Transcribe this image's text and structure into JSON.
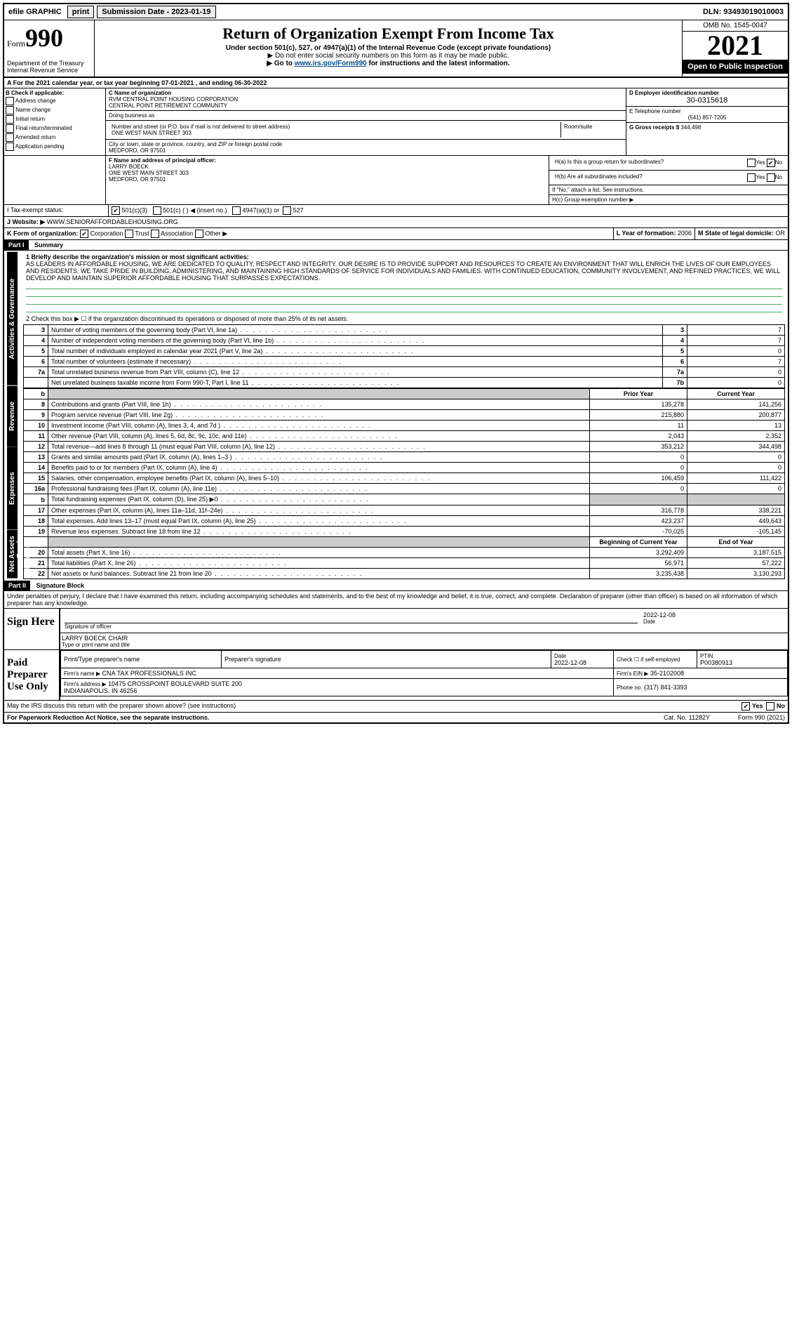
{
  "topbar": {
    "efile": "efile GRAPHIC",
    "print": "print",
    "subdate_label": "Submission Date - 2023-01-19",
    "dln": "DLN: 93493019010003"
  },
  "header": {
    "form_word": "Form",
    "form_num": "990",
    "dept": "Department of the Treasury\nInternal Revenue Service",
    "title": "Return of Organization Exempt From Income Tax",
    "sub": "Under section 501(c), 527, or 4947(a)(1) of the Internal Revenue Code (except private foundations)",
    "sub2": "▶ Do not enter social security numbers on this form as it may be made public.",
    "sub3_pre": "▶ Go to ",
    "sub3_link": "www.irs.gov/Form990",
    "sub3_post": " for instructions and the latest information.",
    "omb": "OMB No. 1545-0047",
    "year": "2021",
    "open": "Open to Public Inspection"
  },
  "period": "A For the 2021 calendar year, or tax year beginning 07-01-2021 , and ending 06-30-2022",
  "B": {
    "label": "B Check if applicable:",
    "items": [
      "Address change",
      "Name change",
      "Initial return",
      "Final return/terminated",
      "Amended return",
      "Application pending"
    ]
  },
  "C": {
    "label": "C Name of organization",
    "name1": "RVM CENTRAL POINT HOUSING CORPORATION",
    "name2": "CENTRAL POINT RETIREMENT COMMUNITY",
    "dba": "Doing business as",
    "street_label": "Number and street (or P.O. box if mail is not delivered to street address)",
    "street": "ONE WEST MAIN STREET 303",
    "room_label": "Room/suite",
    "city_label": "City or town, state or province, country, and ZIP or foreign postal code",
    "city": "MEDFORD, OR  97501"
  },
  "D": {
    "label": "D Employer identification number",
    "value": "30-0315618"
  },
  "E": {
    "label": "E Telephone number",
    "value": "(541) 857-7205"
  },
  "G": {
    "label": "G Gross receipts $",
    "value": "344,498"
  },
  "F": {
    "label": "F  Name and address of principal officer:",
    "name": "LARRY BOECK",
    "addr1": "ONE WEST MAIN STREET 303",
    "addr2": "MEDFORD, OR  97501"
  },
  "H": {
    "a": "H(a)  Is this a group return for subordinates?",
    "b": "H(b)  Are all subordinates included?",
    "b_note": "If \"No,\" attach a list. See instructions.",
    "c": "H(c)  Group exemption number ▶",
    "yes": "Yes",
    "no": "No"
  },
  "I": {
    "label": "I   Tax-exempt status:",
    "o1": "501(c)(3)",
    "o2": "501(c) (   ) ◀ (insert no.)",
    "o3": "4947(a)(1) or",
    "o4": "527"
  },
  "J": {
    "label": "J   Website: ▶",
    "value": "WWW.SENIORAFFORDABLEHOUSING.ORG"
  },
  "K": {
    "label": "K Form of organization:",
    "o1": "Corporation",
    "o2": "Trust",
    "o3": "Association",
    "o4": "Other ▶"
  },
  "L": {
    "label": "L Year of formation:",
    "value": "2006"
  },
  "M": {
    "label": "M State of legal domicile:",
    "value": "OR"
  },
  "partI": {
    "hdr": "Part I",
    "title": "Summary",
    "line1_label": "1   Briefly describe the organization's mission or most significant activities:",
    "mission": "AS LEADERS IN AFFORDABLE HOUSING, WE ARE DEDICATED TO QUALITY, RESPECT AND INTEGRITY. OUR DESIRE IS TO PROVIDE SUPPORT AND RESOURCES TO CREATE AN ENVIRONMENT THAT WILL ENRICH THE LIVES OF OUR EMPLOYEES AND RESIDENTS. WE TAKE PRIDE IN BUILDING, ADMINISTERING, AND MAINTAINING HIGH STANDARDS OF SERVICE FOR INDIVIDUALS AND FAMILIES. WITH CONTINUED EDUCATION, COMMUNITY INVOLVEMENT, AND REFINED PRACTICES, WE WILL DEVELOP AND MAINTAIN SUPERIOR AFFORDABLE HOUSING THAT SURPASSES EXPECTATIONS.",
    "line2": "2   Check this box ▶ ☐ if the organization discontinued its operations or disposed of more than 25% of its net assets."
  },
  "gov_tab": "Activities & Governance",
  "rev_tab": "Revenue",
  "exp_tab": "Expenses",
  "net_tab": "Net Assets or Fund Balances",
  "gov_lines": [
    {
      "n": "3",
      "d": "Number of voting members of the governing body (Part VI, line 1a)",
      "b": "3",
      "v": "7"
    },
    {
      "n": "4",
      "d": "Number of independent voting members of the governing body (Part VI, line 1b)",
      "b": "4",
      "v": "7"
    },
    {
      "n": "5",
      "d": "Total number of individuals employed in calendar year 2021 (Part V, line 2a)",
      "b": "5",
      "v": "0"
    },
    {
      "n": "6",
      "d": "Total number of volunteers (estimate if necessary)",
      "b": "6",
      "v": "7"
    },
    {
      "n": "7a",
      "d": "Total unrelated business revenue from Part VIII, column (C), line 12",
      "b": "7a",
      "v": "0"
    },
    {
      "n": "",
      "d": "Net unrelated business taxable income from Form 990-T, Part I, line 11",
      "b": "7b",
      "v": "0"
    }
  ],
  "cols": {
    "b": "b",
    "prior": "Prior Year",
    "current": "Current Year"
  },
  "rev_lines": [
    {
      "n": "8",
      "d": "Contributions and grants (Part VIII, line 1h)",
      "p": "135,278",
      "c": "141,256"
    },
    {
      "n": "9",
      "d": "Program service revenue (Part VIII, line 2g)",
      "p": "215,880",
      "c": "200,877"
    },
    {
      "n": "10",
      "d": "Investment income (Part VIII, column (A), lines 3, 4, and 7d )",
      "p": "11",
      "c": "13"
    },
    {
      "n": "11",
      "d": "Other revenue (Part VIII, column (A), lines 5, 6d, 8c, 9c, 10c, and 11e)",
      "p": "2,043",
      "c": "2,352"
    },
    {
      "n": "12",
      "d": "Total revenue—add lines 8 through 11 (must equal Part VIII, column (A), line 12)",
      "p": "353,212",
      "c": "344,498"
    }
  ],
  "exp_lines": [
    {
      "n": "13",
      "d": "Grants and similar amounts paid (Part IX, column (A), lines 1–3 )",
      "p": "0",
      "c": "0"
    },
    {
      "n": "14",
      "d": "Benefits paid to or for members (Part IX, column (A), line 4)",
      "p": "0",
      "c": "0"
    },
    {
      "n": "15",
      "d": "Salaries, other compensation, employee benefits (Part IX, column (A), lines 5–10)",
      "p": "106,459",
      "c": "111,422"
    },
    {
      "n": "16a",
      "d": "Professional fundraising fees (Part IX, column (A), line 11e)",
      "p": "0",
      "c": "0"
    },
    {
      "n": "b",
      "d": "Total fundraising expenses (Part IX, column (D), line 25) ▶0",
      "p": "shade",
      "c": "shade"
    },
    {
      "n": "17",
      "d": "Other expenses (Part IX, column (A), lines 11a–11d, 11f–24e)",
      "p": "316,778",
      "c": "338,221"
    },
    {
      "n": "18",
      "d": "Total expenses. Add lines 13–17 (must equal Part IX, column (A), line 25)",
      "p": "423,237",
      "c": "449,643"
    },
    {
      "n": "19",
      "d": "Revenue less expenses. Subtract line 18 from line 12",
      "p": "-70,025",
      "c": "-105,145"
    }
  ],
  "net_cols": {
    "beg": "Beginning of Current Year",
    "end": "End of Year"
  },
  "net_lines": [
    {
      "n": "20",
      "d": "Total assets (Part X, line 16)",
      "p": "3,292,409",
      "c": "3,187,515"
    },
    {
      "n": "21",
      "d": "Total liabilities (Part X, line 26)",
      "p": "56,971",
      "c": "57,222"
    },
    {
      "n": "22",
      "d": "Net assets or fund balances. Subtract line 21 from line 20",
      "p": "3,235,438",
      "c": "3,130,293"
    }
  ],
  "partII": {
    "hdr": "Part II",
    "title": "Signature Block",
    "decl": "Under penalties of perjury, I declare that I have examined this return, including accompanying schedules and statements, and to the best of my knowledge and belief, it is true, correct, and complete. Declaration of preparer (other than officer) is based on all information of which preparer has any knowledge."
  },
  "sign": {
    "here": "Sign Here",
    "sig_label": "Signature of officer",
    "date_label": "Date",
    "date": "2022-12-08",
    "name": "LARRY BOECK  CHAIR",
    "name_label": "Type or print name and title"
  },
  "paid": {
    "here": "Paid Preparer Use Only",
    "col1": "Print/Type preparer's name",
    "col2": "Preparer's signature",
    "col3": "Date",
    "col3v": "2022-12-08",
    "col4": "Check ☐ if self-employed",
    "col5": "PTIN",
    "col5v": "P00380913",
    "firm_name_l": "Firm's name    ▶",
    "firm_name": "CNA TAX PROFESSIONALS INC",
    "firm_ein_l": "Firm's EIN ▶",
    "firm_ein": "35-2102008",
    "firm_addr_l": "Firm's address ▶",
    "firm_addr": "10475 CROSSPOINT BOULEVARD SUITE 200\nINDIANAPOLIS, IN  46256",
    "phone_l": "Phone no.",
    "phone": "(317) 841-3393"
  },
  "discuss": {
    "q": "May the IRS discuss this return with the preparer shown above? (see instructions)",
    "yes": "Yes",
    "no": "No"
  },
  "footer": {
    "pra": "For Paperwork Reduction Act Notice, see the separate instructions.",
    "cat": "Cat. No. 11282Y",
    "form": "Form 990 (2021)"
  },
  "style": {
    "accent": "#004b8d"
  }
}
